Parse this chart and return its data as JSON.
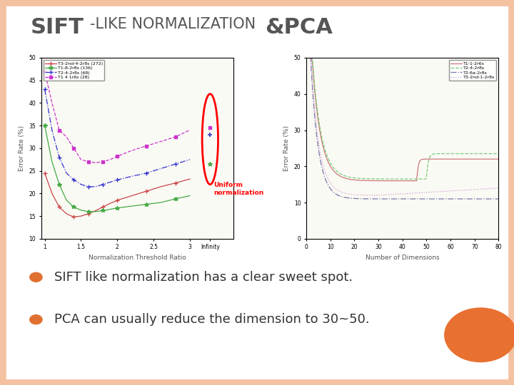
{
  "title_part1": "SIFT",
  "title_part2": "-LIKE NORMALIZATION ",
  "title_part3": "&PCA",
  "bg_color": "#FFFFFF",
  "border_color": "#F4C2A1",
  "bullet1": "SIFT like normalization has a clear sweet spot.",
  "bullet2": "PCA can usually reduce the dimension to 30~50.",
  "bullet_color": "#333333",
  "bullet_marker_color": "#E07030",
  "title_color": "#555555",
  "annotation_text": "Uniform\nnormalization",
  "annotation_color": "#CC0000",
  "plot1": {
    "legend_labels": [
      "T3-2nd-4-2r8s (272)",
      "T1-8-2r8s (136)",
      "T2-4-2r8s (68)",
      "T1 4 1r6s (28)"
    ],
    "colors": [
      "#CC4444",
      "#44AA44",
      "#3333CC",
      "#CC33CC"
    ],
    "xlabel": "Normalization Threshold Ratio",
    "ylabel": "Error Rate (%)",
    "ylim": [
      10,
      50
    ],
    "yticks": [
      10,
      15,
      20,
      25,
      30,
      35,
      40,
      45,
      50
    ]
  },
  "plot2": {
    "legend_labels": [
      "T1-1-2r6s",
      "T2-4-2r8s",
      "T2-6a-2r8s",
      "T3-2nd-1-2r8s"
    ],
    "colors": [
      "#CC7777",
      "#77CC77",
      "#7777AA",
      "#CC99CC"
    ],
    "linestyles": [
      "-",
      "--",
      "-.",
      ":"
    ],
    "xlabel": "Number of Dimensions",
    "ylabel": "Error Rate (%)",
    "ylim": [
      0,
      50
    ],
    "yticks": [
      0,
      10,
      20,
      30,
      40,
      50
    ],
    "xlim": [
      0,
      80
    ]
  }
}
